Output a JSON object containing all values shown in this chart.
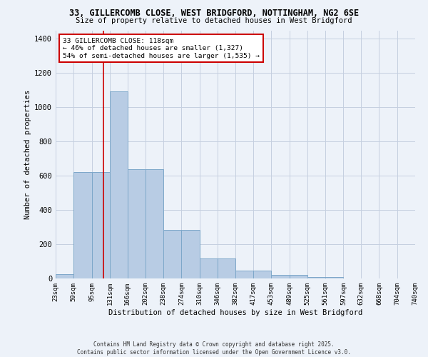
{
  "title1": "33, GILLERCOMB CLOSE, WEST BRIDGFORD, NOTTINGHAM, NG2 6SE",
  "title2": "Size of property relative to detached houses in West Bridgford",
  "xlabel": "Distribution of detached houses by size in West Bridgford",
  "ylabel": "Number of detached properties",
  "bin_edges": [
    23,
    59,
    95,
    131,
    166,
    202,
    238,
    274,
    310,
    346,
    382,
    417,
    453,
    489,
    525,
    561,
    597,
    632,
    668,
    704,
    740
  ],
  "bar_heights": [
    25,
    620,
    620,
    1095,
    640,
    640,
    285,
    285,
    115,
    115,
    45,
    45,
    20,
    20,
    10,
    10,
    0,
    0,
    0,
    0
  ],
  "bar_color": "#b8cce4",
  "bar_edge_color": "#7da7c9",
  "bg_color": "#edf2f9",
  "grid_color": "#c5cfe0",
  "property_size": 118,
  "red_line_color": "#cc0000",
  "annotation_line1": "33 GILLERCOMB CLOSE: 118sqm",
  "annotation_line2": "← 46% of detached houses are smaller (1,327)",
  "annotation_line3": "54% of semi-detached houses are larger (1,535) →",
  "annotation_box_color": "#ffffff",
  "annotation_border_color": "#cc0000",
  "ylim": [
    0,
    1450
  ],
  "yticks": [
    0,
    200,
    400,
    600,
    800,
    1000,
    1200,
    1400
  ],
  "footer1": "Contains HM Land Registry data © Crown copyright and database right 2025.",
  "footer2": "Contains public sector information licensed under the Open Government Licence v3.0."
}
